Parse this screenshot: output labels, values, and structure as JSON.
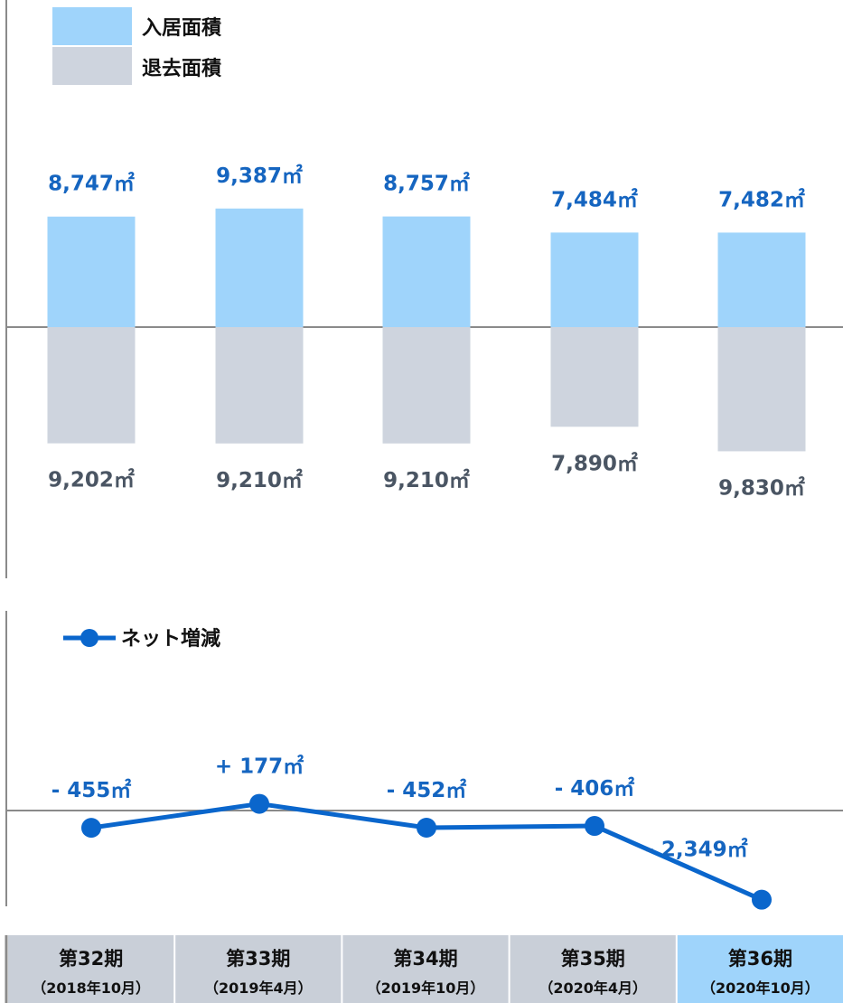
{
  "chart_data": [
    {
      "type": "bar",
      "categories": [
        "第32期（2018年10月）",
        "第33期（2019年4月）",
        "第34期（2019年10月）",
        "第35期（2020年4月）",
        "第36期（2020年10月）"
      ],
      "series": [
        {
          "name": "入居面積",
          "values": [
            8747,
            9387,
            8757,
            7484,
            7482
          ],
          "labels": [
            "8,747㎡",
            "9,387㎡",
            "8,757㎡",
            "7,484㎡",
            "7,482㎡"
          ],
          "color": "#9fd4fb"
        },
        {
          "name": "退去面積",
          "values": [
            -9202,
            -9210,
            -9210,
            -7890,
            -9830
          ],
          "labels": [
            "9,202㎡",
            "9,210㎡",
            "9,210㎡",
            "7,890㎡",
            "9,830㎡"
          ],
          "color": "#ced4de"
        }
      ],
      "grid": false,
      "legend": "top-left"
    },
    {
      "type": "line",
      "categories": [
        "第32期（2018年10月）",
        "第33期（2019年4月）",
        "第34期（2019年10月）",
        "第35期（2020年4月）",
        "第36期（2020年10月）"
      ],
      "series": [
        {
          "name": "ネット増減",
          "values": [
            -455,
            177,
            -452,
            -406,
            -2349
          ],
          "labels": [
            "- 455㎡",
            "+ 177㎡",
            "- 452㎡",
            "- 406㎡",
            "- 2,349㎡"
          ],
          "color": "#0a66cc"
        }
      ],
      "grid": false,
      "legend": "top-left"
    }
  ],
  "periods": [
    {
      "name": "第32期",
      "date": "（2018年10月）",
      "highlight": false
    },
    {
      "name": "第33期",
      "date": "（2019年4月）",
      "highlight": false
    },
    {
      "name": "第34期",
      "date": "（2019年10月）",
      "highlight": false
    },
    {
      "name": "第35期",
      "date": "（2020年4月）",
      "highlight": false
    },
    {
      "name": "第36期",
      "date": "（2020年10月）",
      "highlight": true
    }
  ],
  "colors": {
    "move_in": "#9fd4fb",
    "move_out": "#ced4de",
    "net_line": "#0a66cc",
    "label_blue": "#1565c0",
    "label_gray": "#4a5563",
    "axis": "#8a8a8a",
    "cell_default": "#c9cfd8",
    "cell_highlight": "#9fd4fb"
  }
}
